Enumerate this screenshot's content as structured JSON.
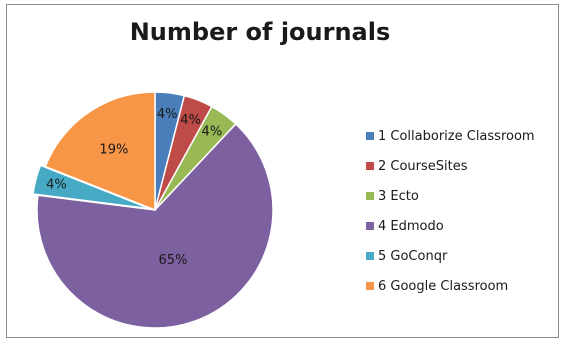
{
  "chart_data": {
    "type": "pie",
    "title": "Number of journals",
    "categories": [
      "1 Collaborize Classroom",
      "2 CourseSites",
      "3 Ecto",
      "4 Edmodo",
      "5 GoConqr",
      "6 Google Classroom"
    ],
    "values": [
      4,
      4,
      4,
      65,
      4,
      19
    ],
    "labels": [
      "4%",
      "4%",
      "4%",
      "65%",
      "4%",
      "19%"
    ],
    "colors": [
      "#4a7ebb",
      "#be4b48",
      "#98b954",
      "#7d60a0",
      "#46aac5",
      "#f79646"
    ],
    "legend_position": "right"
  }
}
